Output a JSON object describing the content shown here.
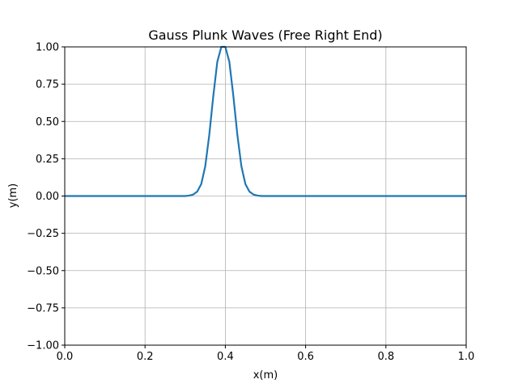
{
  "chart_data": {
    "type": "line",
    "title": "Gauss Plunk Waves (Free Right End)",
    "xlabel": "x(m)",
    "ylabel": "y(m)",
    "xlim": [
      0.0,
      1.0
    ],
    "ylim": [
      -1.0,
      1.0
    ],
    "x_ticks": [
      0.0,
      0.2,
      0.4,
      0.6,
      0.8,
      1.0
    ],
    "x_tick_labels": [
      "0.0",
      "0.2",
      "0.4",
      "0.6",
      "0.8",
      "1.0"
    ],
    "y_ticks": [
      -1.0,
      -0.75,
      -0.5,
      -0.25,
      0.0,
      0.25,
      0.5,
      0.75,
      1.0
    ],
    "y_tick_labels": [
      "−1.00",
      "−0.75",
      "−0.50",
      "−0.25",
      "0.00",
      "0.25",
      "0.50",
      "0.75",
      "1.00"
    ],
    "grid": true,
    "color": "#1f77b4",
    "series": [
      {
        "x": [
          0.0,
          0.02,
          0.04,
          0.06,
          0.08,
          0.1,
          0.12,
          0.14,
          0.16,
          0.18,
          0.2,
          0.22,
          0.24,
          0.26,
          0.28,
          0.3,
          0.31,
          0.32,
          0.33,
          0.34,
          0.35,
          0.36,
          0.37,
          0.38,
          0.39,
          0.4,
          0.41,
          0.42,
          0.43,
          0.44,
          0.45,
          0.46,
          0.47,
          0.48,
          0.49,
          0.5,
          0.52,
          0.54,
          0.56,
          0.58,
          0.6,
          0.62,
          0.64,
          0.66,
          0.68,
          0.7,
          0.72,
          0.74,
          0.76,
          0.78,
          0.8,
          0.82,
          0.84,
          0.86,
          0.88,
          0.9,
          0.92,
          0.94,
          0.96,
          0.98,
          1.0
        ],
        "y": [
          0,
          0,
          0,
          0,
          0,
          0,
          0,
          0,
          0,
          0,
          0,
          0,
          0,
          0,
          0,
          0.0,
          0.003,
          0.01,
          0.03,
          0.08,
          0.2,
          0.41,
          0.67,
          0.9,
          1.0,
          1.0,
          0.9,
          0.67,
          0.41,
          0.2,
          0.08,
          0.03,
          0.01,
          0.003,
          0.0,
          0,
          0,
          0,
          0,
          0,
          0,
          0,
          0,
          0,
          0,
          0,
          0,
          0,
          0,
          0,
          0,
          0,
          0,
          0,
          0,
          0,
          0,
          0,
          0,
          0,
          0
        ]
      }
    ]
  }
}
